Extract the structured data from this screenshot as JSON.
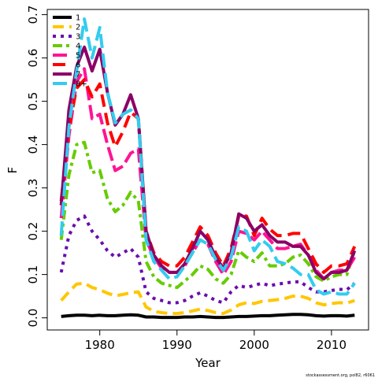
{
  "chart_data": {
    "type": "line",
    "xlabel": "Year",
    "ylabel": "F",
    "xlim": [
      1973.2,
      2014.8
    ],
    "ylim": [
      -0.028,
      0.712
    ],
    "x_ticks": [
      1980,
      1990,
      2000,
      2010
    ],
    "y_ticks": [
      0.0,
      0.1,
      0.2,
      0.3,
      0.4,
      0.5,
      0.6,
      0.7
    ],
    "x_tick_labels": [
      "1980",
      "1990",
      "2000",
      "2010"
    ],
    "y_tick_labels": [
      "0.0",
      "0.1",
      "0.2",
      "0.3",
      "0.4",
      "0.5",
      "0.6",
      "0.7"
    ],
    "legend_position": "top-left",
    "footnote": "stockassessment.org, pol82, r6061",
    "x": [
      1975,
      1976,
      1977,
      1978,
      1979,
      1980,
      1981,
      1982,
      1983,
      1984,
      1985,
      1986,
      1987,
      1988,
      1989,
      1990,
      1991,
      1992,
      1993,
      1994,
      1995,
      1996,
      1997,
      1998,
      1999,
      2000,
      2001,
      2002,
      2003,
      2004,
      2005,
      2006,
      2007,
      2008,
      2009,
      2010,
      2011,
      2012,
      2013
    ],
    "series": [
      {
        "name": "1",
        "color": "#000000",
        "dash": "",
        "values": [
          0.003,
          0.005,
          0.006,
          0.006,
          0.005,
          0.006,
          0.005,
          0.005,
          0.006,
          0.007,
          0.006,
          0.002,
          0.002,
          0.001,
          0.001,
          0.001,
          0.002,
          0.002,
          0.003,
          0.002,
          0.001,
          0.001,
          0.002,
          0.003,
          0.003,
          0.004,
          0.005,
          0.005,
          0.006,
          0.007,
          0.008,
          0.008,
          0.007,
          0.005,
          0.004,
          0.005,
          0.005,
          0.004,
          0.006
        ]
      },
      {
        "name": "2",
        "color": "#FFC700",
        "dash": "14,7",
        "values": [
          0.04,
          0.06,
          0.078,
          0.08,
          0.07,
          0.065,
          0.057,
          0.051,
          0.054,
          0.058,
          0.06,
          0.025,
          0.015,
          0.012,
          0.01,
          0.01,
          0.012,
          0.016,
          0.02,
          0.017,
          0.012,
          0.01,
          0.018,
          0.03,
          0.035,
          0.033,
          0.038,
          0.04,
          0.042,
          0.045,
          0.05,
          0.05,
          0.045,
          0.035,
          0.03,
          0.033,
          0.035,
          0.034,
          0.04
        ]
      },
      {
        "name": "3",
        "color": "#6A0DAD",
        "dash": "4,6",
        "values": [
          0.105,
          0.19,
          0.225,
          0.235,
          0.2,
          0.18,
          0.155,
          0.14,
          0.15,
          0.16,
          0.14,
          0.06,
          0.045,
          0.04,
          0.035,
          0.035,
          0.04,
          0.05,
          0.058,
          0.05,
          0.04,
          0.035,
          0.06,
          0.075,
          0.07,
          0.075,
          0.08,
          0.074,
          0.078,
          0.08,
          0.083,
          0.083,
          0.07,
          0.06,
          0.06,
          0.063,
          0.066,
          0.065,
          0.08
        ]
      },
      {
        "name": "4",
        "color": "#66CC00",
        "dash": "12,5,4,5",
        "values": [
          0.18,
          0.33,
          0.4,
          0.405,
          0.335,
          0.34,
          0.275,
          0.245,
          0.26,
          0.29,
          0.27,
          0.13,
          0.095,
          0.08,
          0.075,
          0.07,
          0.085,
          0.1,
          0.12,
          0.112,
          0.09,
          0.08,
          0.1,
          0.155,
          0.14,
          0.13,
          0.15,
          0.12,
          0.12,
          0.125,
          0.14,
          0.145,
          0.125,
          0.095,
          0.085,
          0.095,
          0.1,
          0.1,
          0.155
        ]
      },
      {
        "name": "5",
        "color": "#FF1493",
        "dash": "18,6",
        "values": [
          0.23,
          0.42,
          0.545,
          0.575,
          0.46,
          0.47,
          0.4,
          0.34,
          0.35,
          0.38,
          0.39,
          0.18,
          0.14,
          0.115,
          0.105,
          0.105,
          0.12,
          0.15,
          0.18,
          0.17,
          0.13,
          0.1,
          0.13,
          0.2,
          0.195,
          0.18,
          0.2,
          0.18,
          0.16,
          0.16,
          0.165,
          0.17,
          0.145,
          0.11,
          0.09,
          0.105,
          0.11,
          0.11,
          0.14
        ]
      },
      {
        "name": "6",
        "color": "#FF0000",
        "dash": "16,8",
        "values": [
          0.27,
          0.44,
          0.53,
          0.55,
          0.51,
          0.54,
          0.45,
          0.395,
          0.43,
          0.475,
          0.46,
          0.2,
          0.15,
          0.13,
          0.12,
          0.12,
          0.14,
          0.175,
          0.21,
          0.19,
          0.15,
          0.12,
          0.16,
          0.235,
          0.235,
          0.19,
          0.23,
          0.205,
          0.19,
          0.19,
          0.195,
          0.195,
          0.16,
          0.125,
          0.105,
          0.12,
          0.12,
          0.125,
          0.165
        ]
      },
      {
        "name": "7",
        "color": "#8B0066",
        "dash": "",
        "values": [
          0.26,
          0.48,
          0.58,
          0.625,
          0.57,
          0.62,
          0.52,
          0.445,
          0.47,
          0.515,
          0.46,
          0.2,
          0.145,
          0.12,
          0.105,
          0.105,
          0.125,
          0.16,
          0.2,
          0.18,
          0.14,
          0.115,
          0.15,
          0.24,
          0.23,
          0.2,
          0.215,
          0.19,
          0.175,
          0.175,
          0.165,
          0.165,
          0.145,
          0.105,
          0.09,
          0.105,
          0.105,
          0.11,
          0.155
        ]
      },
      {
        "name": "8+",
        "color": "#33CCEE",
        "dash": "18,7",
        "values": [
          0.19,
          0.44,
          0.57,
          0.69,
          0.6,
          0.67,
          0.52,
          0.45,
          0.47,
          0.48,
          0.46,
          0.18,
          0.13,
          0.11,
          0.09,
          0.095,
          0.12,
          0.15,
          0.18,
          0.17,
          0.135,
          0.11,
          0.14,
          0.21,
          0.2,
          0.155,
          0.18,
          0.165,
          0.13,
          0.125,
          0.115,
          0.1,
          0.1,
          0.065,
          0.055,
          0.06,
          0.055,
          0.055,
          0.08
        ]
      }
    ]
  }
}
